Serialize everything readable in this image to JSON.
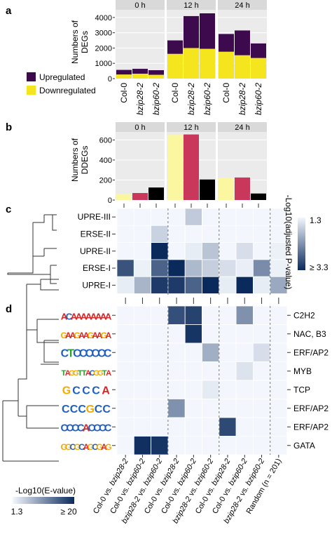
{
  "panels": {
    "a": "a",
    "b": "b",
    "c": "c",
    "d": "d"
  },
  "colors": {
    "upregulated": "#3d0a4d",
    "downregulated": "#f5e51e",
    "ddeg": [
      "#fbf7a0",
      "#c9385a",
      "#000000"
    ],
    "strip": "#d9d9d9",
    "gridbg": "#ebebeb",
    "heat_low": "#f3f7fd",
    "heat_high": "#0a2a5c"
  },
  "chart_data": [
    {
      "type": "bar",
      "id": "a",
      "stacked": true,
      "facets": [
        "0 h",
        "12 h",
        "24 h"
      ],
      "categories": [
        "Col-0",
        "bzip28-2",
        "bzip60-2"
      ],
      "ylabel": "Numbers of\nDEGs",
      "ylim": [
        0,
        4500
      ],
      "yticks": [
        0,
        1000,
        2000,
        3000,
        4000
      ],
      "legend": [
        "Upregulated",
        "Downregulated"
      ],
      "series": [
        {
          "name": "Downregulated",
          "values": [
            [
              270,
              320,
              250
            ],
            [
              1620,
              2000,
              1950
            ],
            [
              1760,
              1530,
              1350
            ]
          ]
        },
        {
          "name": "Upregulated",
          "values": [
            [
              300,
              320,
              300
            ],
            [
              880,
              2090,
              2320
            ],
            [
              1160,
              1620,
              950
            ]
          ]
        }
      ]
    },
    {
      "type": "bar",
      "id": "b",
      "facets": [
        "0 h",
        "12 h",
        "24 h"
      ],
      "categories": [
        "Col-0",
        "bzip28-2",
        "bzip60-2"
      ],
      "ylabel": "Numbers of\nDDEGs",
      "ylim": [
        0,
        680
      ],
      "yticks": [
        0,
        200,
        400,
        600
      ],
      "values": [
        [
          60,
          70,
          125
        ],
        [
          650,
          655,
          205
        ],
        [
          220,
          225,
          65
        ]
      ]
    },
    {
      "type": "heatmap",
      "id": "c",
      "rows": [
        "UPRE-III",
        "ERSE-II",
        "UPRE-II",
        "ERSE-I",
        "UPRE-I"
      ],
      "n_cols": 10,
      "values": [
        [
          0,
          0,
          0,
          0,
          0.22,
          0,
          0,
          0,
          0,
          0
        ],
        [
          0,
          0,
          0.18,
          0,
          0,
          0,
          0,
          0,
          0,
          0
        ],
        [
          0,
          0,
          1.0,
          0,
          0.05,
          0.25,
          0,
          0.12,
          0,
          0.03
        ],
        [
          0.8,
          0.03,
          0.72,
          1.0,
          0.3,
          0.2,
          0.12,
          0.04,
          0.52,
          0.03
        ],
        [
          0.05,
          0.32,
          0.92,
          0.92,
          0.72,
          1.0,
          0.05,
          1.0,
          0.05,
          0.38
        ]
      ],
      "legend_title": "-Log10(adjusted P-value)",
      "legend_ticks": [
        "1.3",
        "≥ 3.3"
      ]
    },
    {
      "type": "heatmap",
      "id": "d",
      "motifs": [
        "ACAAAAAAAA",
        "GAAGAAGAAGA",
        "CTCCCCCC",
        "TAGGTTACGGTA",
        "GCCCA",
        "CCCGCC",
        "CCCCACCCC",
        "GGCGCAGCGAG"
      ],
      "families": [
        "C2H2",
        "NAC, B3",
        "ERF/AP2",
        "MYB",
        "TCP",
        "ERF/AP2",
        "ERF/AP2",
        "GATA"
      ],
      "n_cols": 10,
      "values": [
        [
          0,
          0,
          0,
          0.82,
          0.88,
          0,
          0,
          0.5,
          0,
          0
        ],
        [
          0,
          0,
          0,
          0,
          0.95,
          0,
          0,
          0,
          0,
          0
        ],
        [
          0,
          0,
          0,
          0,
          0,
          0.35,
          0,
          0,
          0.12,
          0
        ],
        [
          0,
          0,
          0,
          0,
          0,
          0,
          0,
          0.1,
          0,
          0
        ],
        [
          0,
          0,
          0,
          0,
          0,
          0.06,
          0,
          0,
          0,
          0
        ],
        [
          0,
          0,
          0,
          0.5,
          0,
          0,
          0,
          0,
          0,
          0
        ],
        [
          0,
          0,
          0,
          0,
          0,
          0,
          0.85,
          0,
          0,
          0
        ],
        [
          0,
          0.97,
          0.95,
          0,
          0,
          0,
          0,
          0,
          0,
          0
        ]
      ],
      "legend_title": "-Log10(E-value)",
      "legend_ticks": [
        "1.3",
        "≥ 20"
      ]
    }
  ],
  "x_labels": [
    "Col-0 vs. bzip28-2",
    "Col-0 vs. bzip60-2",
    "bzip28-2 vs. bzip60-2",
    "Col-0 vs. bzip28-2",
    "Col-0 vs. bzip60-2",
    "bzip28-2 vs. bzip60-2",
    "Col-0 vs. bzip28-2",
    "Col-0 vs. bzip60-2",
    "bzip28-2 vs. bzip60-2",
    "Random (n = 201)"
  ]
}
